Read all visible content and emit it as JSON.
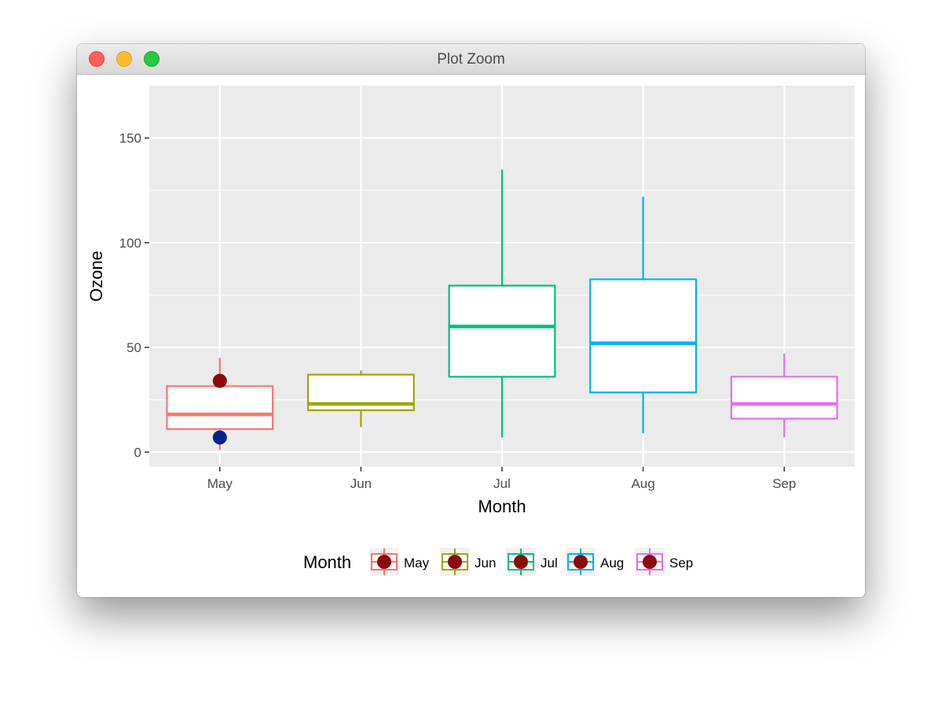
{
  "window": {
    "title": "Plot Zoom",
    "controls": {
      "close": "close-button",
      "minimize": "minimize-button",
      "maximize": "zoom-button"
    }
  },
  "chart_data": {
    "type": "boxplot",
    "xlabel": "Month",
    "ylabel": "Ozone",
    "categories": [
      "May",
      "Jun",
      "Jul",
      "Aug",
      "Sep"
    ],
    "ylim": [
      -7,
      175
    ],
    "yticks": [
      0,
      50,
      100,
      150
    ],
    "grid": true,
    "boxes": [
      {
        "category": "May",
        "color": "#F8766D",
        "q1": 11,
        "median": 18,
        "q3": 31.5,
        "whisker_low": 1,
        "whisker_high": 45
      },
      {
        "category": "Jun",
        "color": "#A3A500",
        "q1": 20,
        "median": 23,
        "q3": 37,
        "whisker_low": 12,
        "whisker_high": 39
      },
      {
        "category": "Jul",
        "color": "#00BF7D",
        "q1": 36,
        "median": 60,
        "q3": 79.5,
        "whisker_low": 7,
        "whisker_high": 135
      },
      {
        "category": "Aug",
        "color": "#00B0F6",
        "q1": 28.5,
        "median": 52,
        "q3": 82.5,
        "whisker_low": 9,
        "whisker_high": 122
      },
      {
        "category": "Sep",
        "color": "#E76BF3",
        "q1": 16,
        "median": 23,
        "q3": 36,
        "whisker_low": 7,
        "whisker_high": 47
      }
    ],
    "points": [
      {
        "category": "May",
        "value": 34,
        "color": "#8B0A0A"
      },
      {
        "category": "May",
        "value": 7,
        "color": "#00238C"
      }
    ],
    "legend": {
      "title": "Month",
      "position": "bottom",
      "point_color": "#8B0A0A",
      "entries": [
        "May",
        "Jun",
        "Jul",
        "Aug",
        "Sep"
      ]
    }
  }
}
